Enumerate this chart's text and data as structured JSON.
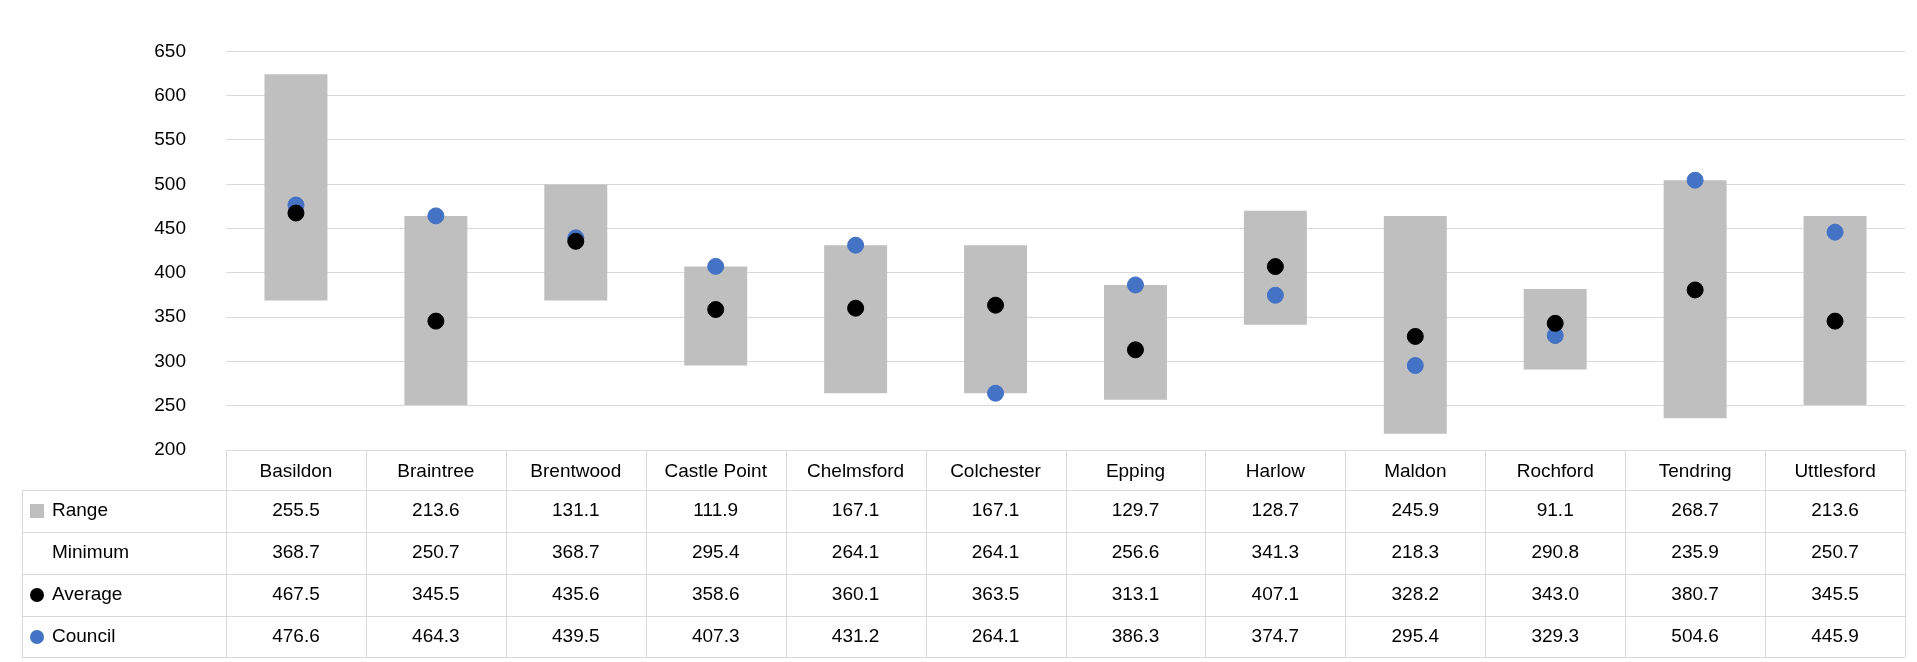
{
  "chart_data": {
    "type": "bar",
    "grid": "y",
    "ylim": [
      200,
      650
    ],
    "yticks": [
      200,
      250,
      300,
      350,
      400,
      450,
      500,
      550,
      600,
      650
    ],
    "categories": [
      "Basildon",
      "Braintree",
      "Brentwood",
      "Castle Point",
      "Chelmsford",
      "Colchester",
      "Epping",
      "Harlow",
      "Maldon",
      "Rochford",
      "Tendring",
      "Uttlesford"
    ],
    "legend": "bottom left",
    "annotations": [
      "Minimum",
      "368.7",
      "250.7",
      "368.7",
      "295.4",
      "264.1",
      "264.1",
      "256.6",
      "341.3",
      "218.3",
      "290.8",
      "235.9",
      "250.7"
    ],
    "series": [
      {
        "name": "Range",
        "color": "#bfbfbf",
        "values": [
          255.5,
          213.6,
          131.1,
          111.9,
          167.1,
          167.1,
          129.7,
          128.7,
          245.9,
          91.1,
          268.7,
          213.6
        ],
        "base": [
          368.7,
          250.7,
          368.7,
          295.4,
          264.1,
          264.1,
          256.6,
          341.3,
          218.3,
          290.8,
          235.9,
          250.7
        ],
        "value_labels": [
          "255.5",
          "213.6",
          "131.1",
          "111.9",
          "167.1",
          "167.1",
          "129.7",
          "128.7",
          "245.9",
          "91.1",
          "268.7",
          "213.6"
        ]
      },
      {
        "name": "Average",
        "type": "scatter",
        "marker": "circle",
        "color": "#000000",
        "x": [
          "Basildon",
          "Braintree",
          "Brentwood",
          "Castle Point",
          "Chelmsford",
          "Colchester",
          "Epping",
          "Harlow",
          "Maldon",
          "Rochford",
          "Tendring",
          "Uttlesford"
        ],
        "values": [
          467.5,
          345.5,
          435.6,
          358.6,
          360.1,
          363.5,
          313.1,
          407.1,
          328.2,
          343.0,
          380.7,
          345.5
        ],
        "value_labels": [
          "467.5",
          "345.5",
          "435.6",
          "358.6",
          "360.1",
          "363.5",
          "313.1",
          "407.1",
          "328.2",
          "343.0",
          "380.7",
          "345.5"
        ]
      },
      {
        "name": "Council",
        "type": "scatter",
        "marker": "circle",
        "color": "#4472c4",
        "x": [
          "Basildon",
          "Braintree",
          "Brentwood",
          "Castle Point",
          "Chelmsford",
          "Colchester",
          "Epping",
          "Harlow",
          "Maldon",
          "Rochford",
          "Tendring",
          "Uttlesford"
        ],
        "values": [
          476.6,
          464.3,
          439.5,
          407.3,
          431.2,
          264.1,
          386.3,
          374.7,
          295.4,
          329.3,
          504.6,
          445.9
        ],
        "value_labels": [
          "476.6",
          "464.3",
          "439.5",
          "407.3",
          "431.2",
          "264.1",
          "386.3",
          "374.7",
          "295.4",
          "329.3",
          "504.6",
          "445.9"
        ]
      }
    ]
  }
}
